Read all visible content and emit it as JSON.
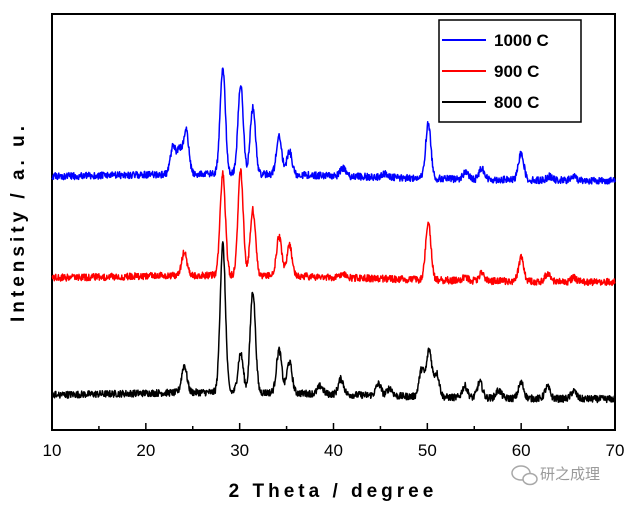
{
  "chart_data": {
    "type": "line",
    "title": "",
    "xlabel": "2 Theta / degree",
    "ylabel": "Intensity / a. u.",
    "xlim": [
      10,
      70
    ],
    "xticks": [
      "10",
      "20",
      "30",
      "40",
      "50",
      "60",
      "70"
    ],
    "yticks_shown": false,
    "grid": false,
    "legend_position": "top-right",
    "series": [
      {
        "name": "1000 C",
        "color": "#0000ff",
        "baseline_offset": 0.56,
        "peaks": [
          {
            "x": 22.9,
            "h": 0.07
          },
          {
            "x": 23.6,
            "h": 0.06
          },
          {
            "x": 24.3,
            "h": 0.11
          },
          {
            "x": 28.2,
            "h": 0.27
          },
          {
            "x": 30.1,
            "h": 0.23
          },
          {
            "x": 31.4,
            "h": 0.17
          },
          {
            "x": 34.2,
            "h": 0.1
          },
          {
            "x": 35.3,
            "h": 0.06
          },
          {
            "x": 41.0,
            "h": 0.02
          },
          {
            "x": 45.4,
            "h": 0.01
          },
          {
            "x": 50.1,
            "h": 0.14
          },
          {
            "x": 54.1,
            "h": 0.02
          },
          {
            "x": 55.8,
            "h": 0.03
          },
          {
            "x": 60.0,
            "h": 0.07
          },
          {
            "x": 63.0,
            "h": 0.01
          },
          {
            "x": 65.6,
            "h": 0.01
          }
        ]
      },
      {
        "name": "900 C",
        "color": "#ff0000",
        "baseline_offset": 0.3,
        "peaks": [
          {
            "x": 24.1,
            "h": 0.06
          },
          {
            "x": 28.2,
            "h": 0.26
          },
          {
            "x": 30.1,
            "h": 0.27
          },
          {
            "x": 31.4,
            "h": 0.17
          },
          {
            "x": 34.2,
            "h": 0.1
          },
          {
            "x": 35.3,
            "h": 0.08
          },
          {
            "x": 41.0,
            "h": 0.01
          },
          {
            "x": 50.1,
            "h": 0.15
          },
          {
            "x": 54.0,
            "h": 0.01
          },
          {
            "x": 55.8,
            "h": 0.02
          },
          {
            "x": 60.0,
            "h": 0.06
          },
          {
            "x": 62.8,
            "h": 0.02
          },
          {
            "x": 65.6,
            "h": 0.01
          }
        ]
      },
      {
        "name": "800 C",
        "color": "#000000",
        "baseline_offset": 0.0,
        "peaks": [
          {
            "x": 24.1,
            "h": 0.07
          },
          {
            "x": 28.2,
            "h": 0.38
          },
          {
            "x": 30.1,
            "h": 0.1
          },
          {
            "x": 31.4,
            "h": 0.26
          },
          {
            "x": 34.2,
            "h": 0.11
          },
          {
            "x": 35.3,
            "h": 0.08
          },
          {
            "x": 38.6,
            "h": 0.02
          },
          {
            "x": 40.8,
            "h": 0.04
          },
          {
            "x": 44.8,
            "h": 0.03
          },
          {
            "x": 46.0,
            "h": 0.02
          },
          {
            "x": 49.4,
            "h": 0.07
          },
          {
            "x": 50.2,
            "h": 0.12
          },
          {
            "x": 51.0,
            "h": 0.06
          },
          {
            "x": 54.0,
            "h": 0.03
          },
          {
            "x": 55.6,
            "h": 0.04
          },
          {
            "x": 57.6,
            "h": 0.02
          },
          {
            "x": 60.0,
            "h": 0.04
          },
          {
            "x": 62.8,
            "h": 0.03
          },
          {
            "x": 65.6,
            "h": 0.02
          }
        ]
      }
    ]
  },
  "watermark": {
    "text": "研之成理",
    "icon": "wechat-icon"
  }
}
